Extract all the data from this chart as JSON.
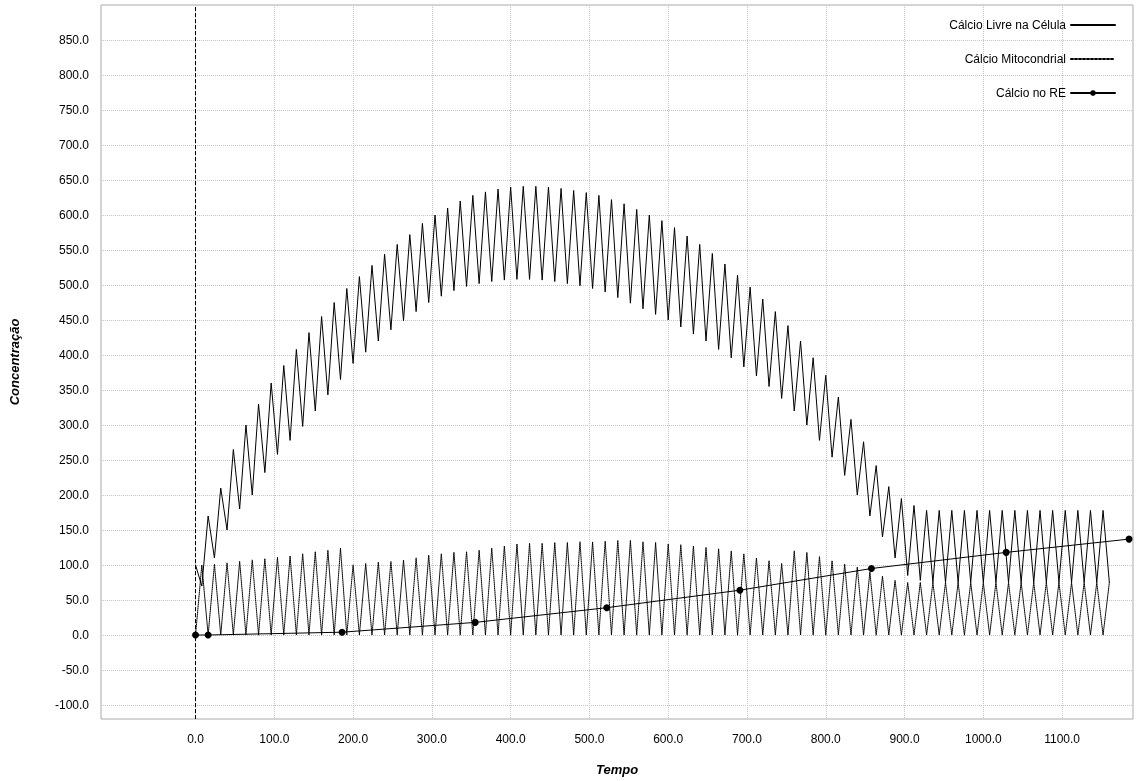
{
  "chart_data": {
    "type": "line",
    "xlabel": "Tempo",
    "ylabel": "Concentração",
    "x": [
      0,
      8,
      16,
      24,
      32,
      40,
      48,
      56,
      64,
      72,
      80,
      88,
      96,
      104,
      112,
      120,
      128,
      136,
      144,
      152,
      160,
      168,
      176,
      184,
      192,
      200,
      208,
      216,
      224,
      232,
      240,
      248,
      256,
      264,
      272,
      280,
      288,
      296,
      304,
      312,
      320,
      328,
      336,
      344,
      352,
      360,
      368,
      376,
      384,
      392,
      400,
      408,
      416,
      424,
      432,
      440,
      448,
      456,
      464,
      472,
      480,
      488,
      496,
      504,
      512,
      520,
      528,
      536,
      544,
      552,
      560,
      568,
      576,
      584,
      592,
      600,
      608,
      616,
      624,
      632,
      640,
      648,
      656,
      664,
      672,
      680,
      688,
      696,
      704,
      712,
      720,
      728,
      736,
      744,
      752,
      760,
      768,
      776,
      784,
      792,
      800,
      808,
      816,
      824,
      832,
      840,
      848,
      856,
      864,
      872,
      880,
      888,
      896,
      904,
      912,
      920,
      928,
      936,
      944,
      952,
      960,
      968,
      976,
      984,
      992,
      1000,
      1008,
      1016,
      1024,
      1032,
      1040,
      1048,
      1056,
      1064,
      1072,
      1080,
      1088,
      1096,
      1104,
      1112,
      1120,
      1128,
      1136,
      1144,
      1152,
      1160
    ],
    "series": [
      {
        "name": "Cálcio Livre na Célula",
        "color": "#000000",
        "line_style": "solid",
        "marker": "none",
        "values": [
          100,
          70,
          170,
          110,
          210,
          150,
          265,
          180,
          300,
          200,
          330,
          232,
          360,
          258,
          385,
          278,
          408,
          298,
          432,
          320,
          455,
          343,
          475,
          365,
          495,
          388,
          512,
          404,
          528,
          420,
          544,
          436,
          558,
          449,
          572,
          462,
          588,
          475,
          600,
          484,
          610,
          492,
          620,
          498,
          628,
          502,
          633,
          505,
          637,
          507,
          640,
          508,
          641,
          508,
          641,
          507,
          640,
          505,
          638,
          502,
          635,
          499,
          632,
          495,
          628,
          490,
          622,
          482,
          616,
          474,
          608,
          466,
          600,
          458,
          592,
          450,
          582,
          440,
          570,
          430,
          558,
          420,
          545,
          408,
          530,
          396,
          514,
          383,
          497,
          370,
          480,
          355,
          462,
          338,
          442,
          320,
          420,
          300,
          396,
          278,
          371,
          254,
          340,
          228,
          308,
          200,
          276,
          170,
          242,
          140,
          212,
          110,
          195,
          85,
          185,
          78,
          178,
          75,
          178,
          75,
          178,
          75,
          178,
          75,
          178,
          75,
          178,
          75,
          178,
          75,
          178,
          75,
          178,
          75,
          178,
          75,
          178,
          75,
          178,
          75,
          178,
          75,
          178,
          75,
          178,
          75
        ]
      },
      {
        "name": "Cálcio Mitocondrial",
        "color": "#000000",
        "line_style": "dotted",
        "marker": "none",
        "values": [
          0,
          100,
          0,
          101,
          0,
          103,
          0,
          105,
          0,
          107,
          0,
          109,
          0,
          111,
          0,
          113,
          0,
          116,
          0,
          119,
          0,
          121,
          0,
          124,
          0,
          100,
          0,
          102,
          0,
          104,
          0,
          105,
          0,
          107,
          0,
          110,
          0,
          114,
          0,
          116,
          0,
          118,
          0,
          119,
          0,
          121,
          0,
          124,
          0,
          127,
          0,
          130,
          0,
          131,
          0,
          131,
          0,
          132,
          0,
          132,
          0,
          133,
          0,
          133,
          0,
          134,
          0,
          135,
          0,
          135,
          0,
          133,
          0,
          132,
          0,
          130,
          0,
          129,
          0,
          127,
          0,
          125,
          0,
          123,
          0,
          120,
          0,
          116,
          0,
          110,
          0,
          106,
          0,
          102,
          0,
          120,
          0,
          118,
          0,
          112,
          0,
          106,
          0,
          101,
          0,
          97,
          0,
          90,
          0,
          84,
          0,
          78,
          0,
          75,
          0,
          75,
          0,
          75,
          0,
          75,
          0,
          75,
          0,
          75,
          0,
          75,
          0,
          75,
          0,
          75,
          0,
          75,
          0,
          75,
          0,
          75,
          0,
          75,
          0,
          75,
          0,
          75,
          0,
          75,
          0,
          75
        ]
      },
      {
        "name": "Cálcio no RE",
        "color": "#000000",
        "line_style": "solid",
        "marker": "circle",
        "x": [
          0,
          16,
          186,
          355,
          522,
          691,
          858,
          1029,
          1185
        ],
        "values": [
          0,
          0,
          4,
          18,
          39,
          64,
          95,
          118,
          137
        ]
      }
    ],
    "xlim": [
      -120,
      1190
    ],
    "xticks": [
      {
        "value": 0,
        "label": "0.0"
      },
      {
        "value": 100,
        "label": "100.0"
      },
      {
        "value": 200,
        "label": "200.0"
      },
      {
        "value": 300,
        "label": "300.0"
      },
      {
        "value": 400,
        "label": "400.0"
      },
      {
        "value": 500,
        "label": "500.0"
      },
      {
        "value": 600,
        "label": "600.0"
      },
      {
        "value": 700,
        "label": "700.0"
      },
      {
        "value": 800,
        "label": "800.0"
      },
      {
        "value": 900,
        "label": "900.0"
      },
      {
        "value": 1000,
        "label": "1000.0"
      },
      {
        "value": 1100,
        "label": "1100.0"
      }
    ],
    "ylim": [
      -120,
      900
    ],
    "yticks": [
      {
        "value": -100,
        "label": "-100.0"
      },
      {
        "value": -50,
        "label": "-50.0"
      },
      {
        "value": 0,
        "label": "0.0"
      },
      {
        "value": 50,
        "label": "50.0"
      },
      {
        "value": 100,
        "label": "100.0"
      },
      {
        "value": 150,
        "label": "150.0"
      },
      {
        "value": 200,
        "label": "200.0"
      },
      {
        "value": 250,
        "label": "250.0"
      },
      {
        "value": 300,
        "label": "300.0"
      },
      {
        "value": 350,
        "label": "350.0"
      },
      {
        "value": 400,
        "label": "400.0"
      },
      {
        "value": 450,
        "label": "450.0"
      },
      {
        "value": 500,
        "label": "500.0"
      },
      {
        "value": 550,
        "label": "550.0"
      },
      {
        "value": 600,
        "label": "600.0"
      },
      {
        "value": 650,
        "label": "650.0"
      },
      {
        "value": 700,
        "label": "700.0"
      },
      {
        "value": 750,
        "label": "750.0"
      },
      {
        "value": 800,
        "label": "800.0"
      },
      {
        "value": 850,
        "label": "850.0"
      }
    ],
    "ref_lines": [
      {
        "axis": "x",
        "value": 0,
        "line_style": "dashed",
        "color": "#000000"
      }
    ],
    "grid": true,
    "legend": "top right"
  }
}
